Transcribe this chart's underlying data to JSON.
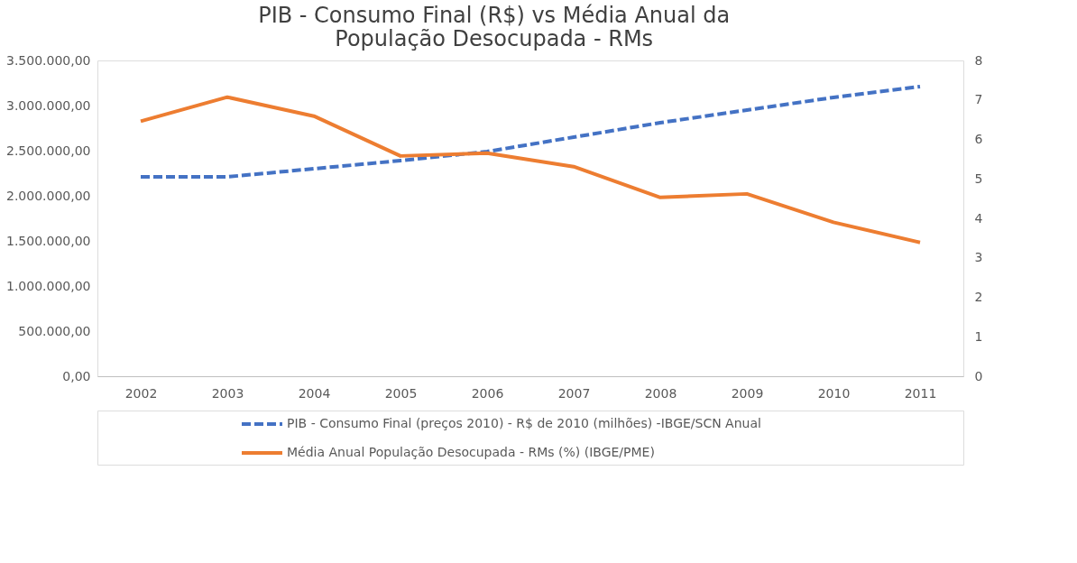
{
  "chart_data": {
    "type": "line",
    "title": "PIB - Consumo Final (R$) vs Média Anual da População Desocupada - RMs",
    "categories": [
      "2002",
      "2003",
      "2004",
      "2005",
      "2006",
      "2007",
      "2008",
      "2009",
      "2010",
      "2011"
    ],
    "series": [
      {
        "name": "PIB - Consumo Final (preços 2010) - R$ de 2010 (milhões)  -IBGE/SCN Anual",
        "color": "#4472c4",
        "line_style": "dashed",
        "values": [
          2210000,
          2210000,
          2300000,
          2390000,
          2490000,
          2650000,
          2810000,
          2950000,
          3090000,
          3210000
        ]
      },
      {
        "name": "Média Anual População Desocupada - RMs (%) (IBGE/PME)",
        "color": "#ed7d31",
        "line_style": "solid",
        "axis": "y2",
        "values": [
          6.46,
          7.07,
          6.59,
          5.58,
          5.65,
          5.31,
          4.53,
          4.62,
          3.9,
          3.39
        ]
      }
    ],
    "ylim": [
      0,
      3500000
    ],
    "yticks": [
      {
        "value": 0,
        "label": "0,00"
      },
      {
        "value": 500000,
        "label": "500.000,00"
      },
      {
        "value": 1000000,
        "label": "1.000.000,00"
      },
      {
        "value": 1500000,
        "label": "1.500.000,00"
      },
      {
        "value": 2000000,
        "label": "2.000.000,00"
      },
      {
        "value": 2500000,
        "label": "2.500.000,00"
      },
      {
        "value": 3000000,
        "label": "3.000.000,00"
      },
      {
        "value": 3500000,
        "label": "3.500.000,00"
      }
    ],
    "y2lim": [
      0,
      8
    ],
    "y2ticks": [
      0,
      1,
      2,
      3,
      4,
      5,
      6,
      7,
      8
    ],
    "grid": false,
    "legend": "bottom",
    "marker": "none"
  }
}
